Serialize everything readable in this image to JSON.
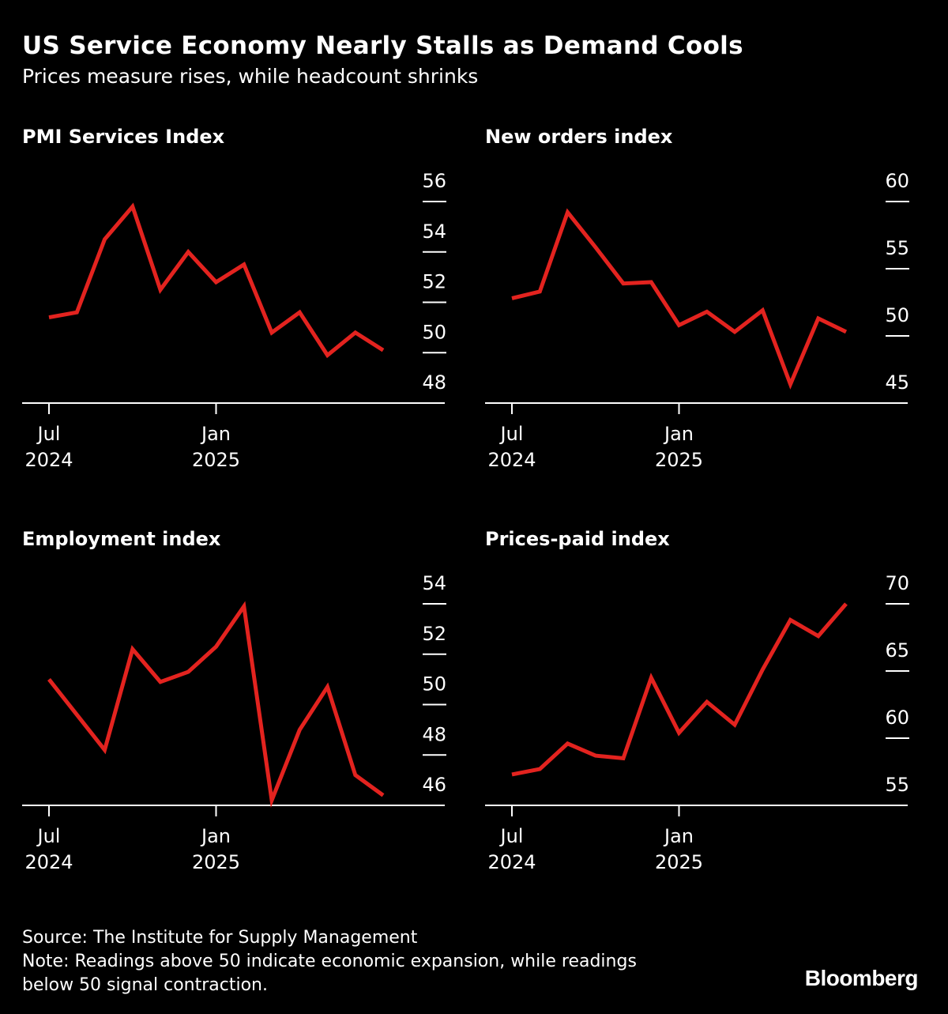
{
  "title": "US Service Economy Nearly Stalls as Demand Cools",
  "subtitle": "Prices measure rises, while headcount shrinks",
  "colors": {
    "line": "#e3231f",
    "background": "#000000",
    "text": "#ffffff"
  },
  "chart_data": [
    {
      "type": "line",
      "title": "PMI Services Index",
      "x": [
        "2024-07",
        "2024-08",
        "2024-09",
        "2024-10",
        "2024-11",
        "2024-12",
        "2025-01",
        "2025-02",
        "2025-03",
        "2025-04",
        "2025-05",
        "2025-06",
        "2025-07"
      ],
      "values": [
        51.4,
        51.6,
        54.5,
        55.8,
        52.5,
        54.0,
        52.8,
        53.5,
        50.8,
        51.6,
        49.9,
        50.8,
        50.1
      ],
      "yticks": [
        56,
        54,
        52,
        50,
        48
      ],
      "ylim": [
        48,
        56
      ],
      "xticks": [
        "Jul|2024",
        "Jan|2025"
      ],
      "grid": false
    },
    {
      "type": "line",
      "title": "New orders index",
      "x": [
        "2024-07",
        "2024-08",
        "2024-09",
        "2024-10",
        "2024-11",
        "2024-12",
        "2025-01",
        "2025-02",
        "2025-03",
        "2025-04",
        "2025-05",
        "2025-06",
        "2025-07"
      ],
      "values": [
        52.8,
        53.3,
        59.2,
        56.6,
        53.9,
        54.0,
        50.8,
        51.8,
        50.3,
        51.9,
        46.4,
        51.3,
        50.3
      ],
      "yticks": [
        60,
        55,
        50,
        45
      ],
      "ylim": [
        45,
        60
      ],
      "xticks": [
        "Jul|2024",
        "Jan|2025"
      ],
      "grid": false
    },
    {
      "type": "line",
      "title": "Employment index",
      "x": [
        "2024-07",
        "2024-08",
        "2024-09",
        "2024-10",
        "2024-11",
        "2024-12",
        "2025-01",
        "2025-02",
        "2025-03",
        "2025-04",
        "2025-05",
        "2025-06",
        "2025-07"
      ],
      "values": [
        51.0,
        49.6,
        48.2,
        52.2,
        50.9,
        51.3,
        52.3,
        53.9,
        46.2,
        49.0,
        50.7,
        47.2,
        46.4
      ],
      "yticks": [
        54,
        52,
        50,
        48,
        46
      ],
      "ylim": [
        46,
        54
      ],
      "xticks": [
        "Jul|2024",
        "Jan|2025"
      ],
      "grid": false
    },
    {
      "type": "line",
      "title": "Prices-paid index",
      "x": [
        "2024-07",
        "2024-08",
        "2024-09",
        "2024-10",
        "2024-11",
        "2024-12",
        "2025-01",
        "2025-02",
        "2025-03",
        "2025-04",
        "2025-05",
        "2025-06",
        "2025-07"
      ],
      "values": [
        57.3,
        57.7,
        59.6,
        58.7,
        58.5,
        64.5,
        60.4,
        62.7,
        61.0,
        65.1,
        68.8,
        67.6,
        70.0
      ],
      "yticks": [
        70,
        65,
        60,
        55
      ],
      "ylim": [
        55,
        70
      ],
      "xticks": [
        "Jul|2024",
        "Jan|2025"
      ],
      "grid": false
    }
  ],
  "footer": {
    "source": "Source: The Institute for Supply Management",
    "note_line1": "Note: Readings above 50 indicate economic expansion, while readings",
    "note_line2": "below 50 signal contraction.",
    "logo": "Bloomberg"
  }
}
